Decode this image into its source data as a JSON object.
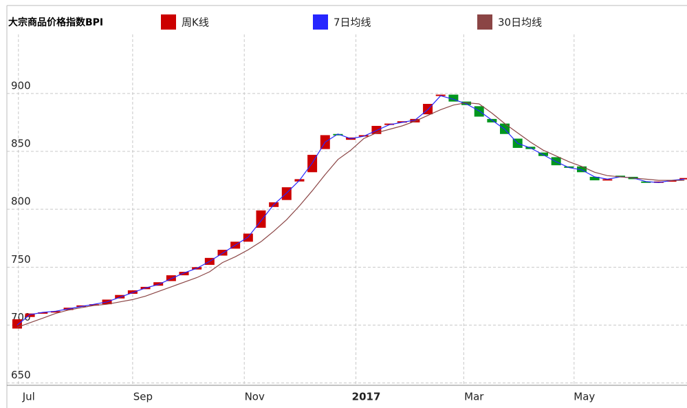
{
  "chart_data": {
    "type": "candlestick",
    "title": "大宗商品价格指数BPI",
    "x": [
      0,
      1,
      2,
      3,
      4,
      5,
      6,
      7,
      8,
      9,
      10,
      11,
      12,
      13,
      14,
      15,
      16,
      17,
      18,
      19,
      20,
      21,
      22,
      23,
      24,
      25,
      26,
      27,
      28,
      29,
      30,
      31,
      32,
      33,
      34,
      35,
      36,
      37,
      38,
      39,
      40,
      41,
      42,
      43,
      44,
      45,
      46,
      47,
      48,
      49,
      50,
      51,
      52
    ],
    "series": [
      {
        "name": "周K线",
        "up_color": "#cc0000",
        "down_color": "#00961e",
        "open": [
          697,
          707,
          710,
          711,
          713,
          716,
          717,
          718,
          723,
          727,
          731,
          734,
          738,
          743,
          748,
          752,
          760,
          766,
          772,
          784,
          802,
          808,
          824,
          832,
          852,
          865,
          860,
          863,
          865,
          873,
          875,
          875,
          882,
          898,
          899,
          893,
          889,
          878,
          874,
          861,
          854,
          849,
          845,
          837,
          837,
          828,
          825,
          829,
          828,
          824,
          823,
          825,
          826
        ],
        "close": [
          705,
          710,
          711,
          712,
          715,
          717,
          718,
          722,
          726,
          730,
          733,
          737,
          743,
          746,
          750,
          758,
          765,
          772,
          779,
          799,
          806,
          819,
          826,
          847,
          864,
          864,
          862,
          864,
          872,
          874,
          876,
          878,
          891,
          899,
          893,
          890,
          880,
          875,
          865,
          853,
          852,
          846,
          838,
          836,
          832,
          825,
          826,
          828,
          826,
          823,
          824,
          825,
          827
        ]
      },
      {
        "name": "7日均线",
        "color": "#2626ff",
        "values": [
          700,
          709,
          711,
          712,
          714,
          716,
          718,
          720,
          724,
          728,
          732,
          735,
          740,
          745,
          749,
          755,
          762,
          769,
          776,
          790,
          804,
          814,
          825,
          840,
          858,
          865,
          861,
          863,
          868,
          873,
          875,
          877,
          886,
          898,
          895,
          891,
          885,
          877,
          869,
          857,
          853,
          847,
          841,
          836,
          834,
          828,
          826,
          828,
          827,
          824,
          823,
          825,
          826
        ]
      },
      {
        "name": "30日均线",
        "color": "#8b4545",
        "values": [
          698,
          702,
          706,
          710,
          713,
          715,
          717,
          718,
          720,
          722,
          725,
          729,
          733,
          737,
          741,
          746,
          754,
          759,
          765,
          772,
          781,
          791,
          803,
          816,
          830,
          843,
          851,
          861,
          866,
          869,
          872,
          876,
          881,
          886,
          890,
          892,
          891,
          883,
          874,
          866,
          858,
          851,
          846,
          841,
          837,
          832,
          829,
          828,
          827,
          826,
          825,
          825,
          825
        ]
      }
    ],
    "xlim": [
      -0.8,
      52.2
    ],
    "xticks": [
      {
        "value": 0.1,
        "label": "Jul"
      },
      {
        "value": 9.0,
        "label": "Sep"
      },
      {
        "value": 17.7,
        "label": "Nov"
      },
      {
        "value": 26.4,
        "label": "2017",
        "bold": true
      },
      {
        "value": 34.8,
        "label": "Mar"
      },
      {
        "value": 43.4,
        "label": "May"
      }
    ],
    "ylim": [
      648,
      951
    ],
    "yticks": [
      650,
      700,
      750,
      800,
      850,
      900
    ],
    "grid": true
  }
}
